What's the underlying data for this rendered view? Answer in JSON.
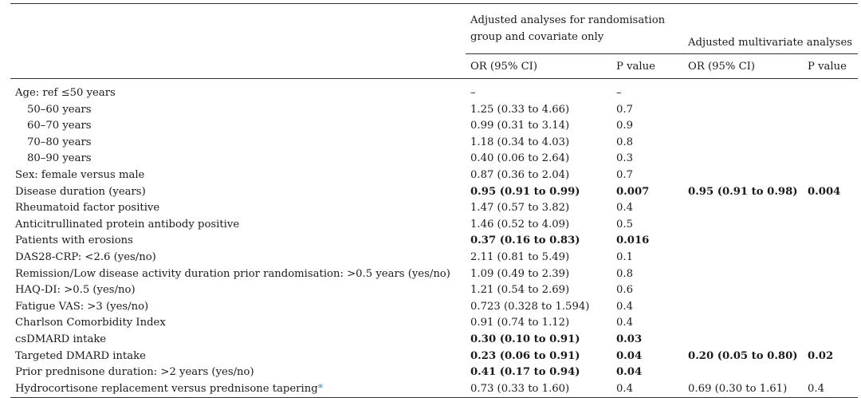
{
  "header": {
    "group1": "Adjusted analyses for randomisation group and covariate only",
    "group1_line1": "Adjusted analyses for randomisation",
    "group1_line2": "group and covariate only",
    "group2": "Adjusted multivariate analyses",
    "or_label": "OR (95% CI)",
    "p_label": "P value"
  },
  "rows": [
    {
      "label": "Age: ref ≤50 years",
      "or1": "–",
      "p1": "–",
      "or2": "",
      "p2": "",
      "indent": false,
      "bold1": false,
      "bold2": false
    },
    {
      "label": "50–60 years",
      "or1": "1.25 (0.33 to 4.66)",
      "p1": "0.7",
      "or2": "",
      "p2": "",
      "indent": true,
      "bold1": false,
      "bold2": false
    },
    {
      "label": "60–70 years",
      "or1": "0.99 (0.31 to 3.14)",
      "p1": "0.9",
      "or2": "",
      "p2": "",
      "indent": true,
      "bold1": false,
      "bold2": false
    },
    {
      "label": "70–80 years",
      "or1": "1.18 (0.34 to 4.03)",
      "p1": "0.8",
      "or2": "",
      "p2": "",
      "indent": true,
      "bold1": false,
      "bold2": false
    },
    {
      "label": "80–90 years",
      "or1": "0.40 (0.06 to 2.64)",
      "p1": "0.3",
      "or2": "",
      "p2": "",
      "indent": true,
      "bold1": false,
      "bold2": false
    },
    {
      "label": "Sex: female versus male",
      "or1": "0.87 (0.36 to 2.04)",
      "p1": "0.7",
      "or2": "",
      "p2": "",
      "indent": false,
      "bold1": false,
      "bold2": false
    },
    {
      "label": "Disease duration (years)",
      "or1": "0.95 (0.91 to 0.99)",
      "p1": "0.007",
      "or2": "0.95 (0.91 to 0.98)",
      "p2": "0.004",
      "indent": false,
      "bold1": true,
      "bold2": true
    },
    {
      "label": "Rheumatoid factor positive",
      "or1": "1.47 (0.57 to 3.82)",
      "p1": "0.4",
      "or2": "",
      "p2": "",
      "indent": false,
      "bold1": false,
      "bold2": false
    },
    {
      "label": "Anticitrullinated protein antibody positive",
      "or1": "1.46 (0.52 to 4.09)",
      "p1": "0.5",
      "or2": "",
      "p2": "",
      "indent": false,
      "bold1": false,
      "bold2": false
    },
    {
      "label": "Patients with erosions",
      "or1": "0.37 (0.16 to 0.83)",
      "p1": "0.016",
      "or2": "",
      "p2": "",
      "indent": false,
      "bold1": true,
      "bold2": false
    },
    {
      "label": "DAS28-CRP: <2.6 (yes/no)",
      "or1": "2.11 (0.81 to 5.49)",
      "p1": "0.1",
      "or2": "",
      "p2": "",
      "indent": false,
      "bold1": false,
      "bold2": false
    },
    {
      "label": "Remission/Low disease activity duration prior randomisation: >0.5 years (yes/no)",
      "or1": "1.09 (0.49 to 2.39)",
      "p1": "0.8",
      "or2": "",
      "p2": "",
      "indent": false,
      "bold1": false,
      "bold2": false
    },
    {
      "label": "HAQ-DI: >0.5 (yes/no)",
      "or1": "1.21 (0.54 to 2.69)",
      "p1": "0.6",
      "or2": "",
      "p2": "",
      "indent": false,
      "bold1": false,
      "bold2": false
    },
    {
      "label": "Fatigue VAS: >3 (yes/no)",
      "or1": "0.723 (0.328 to 1.594)",
      "p1": "0.4",
      "or2": "",
      "p2": "",
      "indent": false,
      "bold1": false,
      "bold2": false
    },
    {
      "label": "Charlson Comorbidity Index",
      "or1": "0.91 (0.74 to 1.12)",
      "p1": "0.4",
      "or2": "",
      "p2": "",
      "indent": false,
      "bold1": false,
      "bold2": false
    },
    {
      "label": "csDMARD intake",
      "or1": "0.30 (0.10 to 0.91)",
      "p1": "0.03",
      "or2": "",
      "p2": "",
      "indent": false,
      "bold1": true,
      "bold2": false
    },
    {
      "label": "Targeted DMARD intake",
      "or1": "0.23 (0.06 to 0.91)",
      "p1": "0.04",
      "or2": "0.20 (0.05 to 0.80)",
      "p2": "0.02",
      "indent": false,
      "bold1": true,
      "bold2": true
    },
    {
      "label": "Prior prednisone duration: >2 years (yes/no)",
      "or1": "0.41 (0.17 to 0.94)",
      "p1": "0.04",
      "or2": "",
      "p2": "",
      "indent": false,
      "bold1": true,
      "bold2": false
    },
    {
      "label": "Hydrocortisone replacement versus prednisone tapering",
      "or1": "0.73 (0.33 to 1.60)",
      "p1": "0.4",
      "or2": "0.69 (0.30 to 1.61)",
      "p2": "0.4",
      "indent": false,
      "bold1": false,
      "bold2": false,
      "footnote": "*"
    }
  ]
}
